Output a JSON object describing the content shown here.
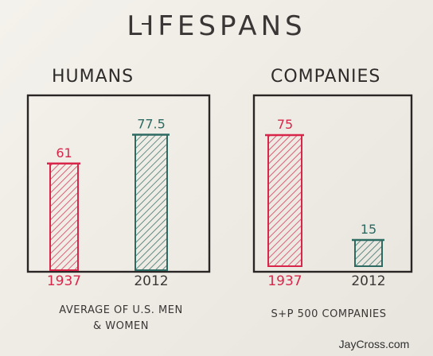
{
  "title": "LIFESPANS",
  "credit": "JayCross.com",
  "colors": {
    "ink": "#3a3636",
    "red": "#d8264a",
    "teal": "#2c6a62"
  },
  "chart_data": [
    {
      "type": "bar",
      "title": "HUMANS",
      "categories": [
        "1937",
        "2012"
      ],
      "values": [
        61,
        77.5
      ],
      "value_labels": [
        "61",
        "77.5"
      ],
      "colors": [
        "#d8264a",
        "#2c6a62"
      ],
      "note_lines": [
        "AVERAGE OF U.S. MEN",
        "& WOMEN"
      ]
    },
    {
      "type": "bar",
      "title": "COMPANIES",
      "categories": [
        "1937",
        "2012"
      ],
      "values": [
        75,
        15
      ],
      "value_labels": [
        "75",
        "15"
      ],
      "colors": [
        "#d8264a",
        "#2c6a62"
      ],
      "note_lines": [
        "S+P 500 COMPANIES"
      ]
    }
  ]
}
